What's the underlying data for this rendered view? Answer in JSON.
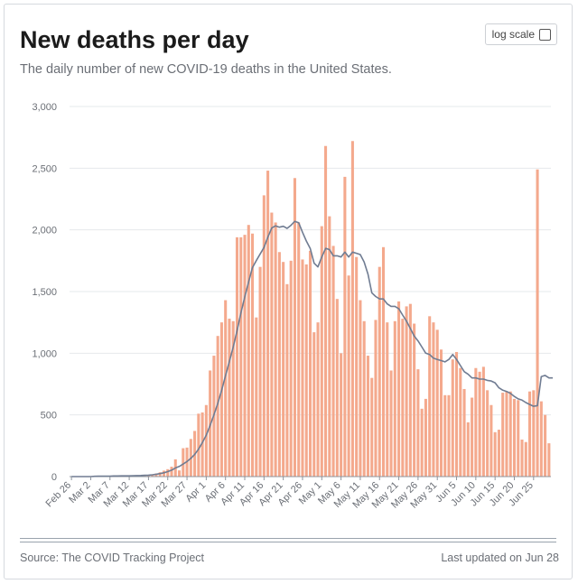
{
  "header": {
    "title": "New deaths per day",
    "subtitle": "The daily number of new COVID-19 deaths in the United States.",
    "log_scale_label": "log scale"
  },
  "footer": {
    "source": "Source: The COVID Tracking Project",
    "updated": "Last updated on Jun 28"
  },
  "colors": {
    "bar": "#f4a98d",
    "line": "#707c92",
    "grid": "#e6e8eb"
  },
  "chart_data": {
    "type": "bar",
    "title": "New deaths per day",
    "ylim": [
      0,
      3000
    ],
    "yticks": [
      0,
      500,
      1000,
      1500,
      2000,
      2500,
      3000
    ],
    "ytick_labels": [
      "0",
      "500",
      "1,000",
      "1,500",
      "2,000",
      "2,500",
      "3,000"
    ],
    "xtick_labels": [
      "Feb 26",
      "Mar 2",
      "Mar 7",
      "Mar 12",
      "Mar 17",
      "Mar 22",
      "Mar 27",
      "Apr 1",
      "Apr 6",
      "Apr 11",
      "Apr 16",
      "Apr 21",
      "Apr 26",
      "May 1",
      "May 6",
      "May 11",
      "May 16",
      "May 21",
      "May 26",
      "May 31",
      "Jun 5",
      "Jun 10",
      "Jun 15",
      "Jun 20",
      "Jun 25"
    ],
    "x_start": "Feb 26",
    "x_end": "Jun 28",
    "grid": true,
    "series": [
      {
        "type": "bar",
        "values": [
          0,
          0,
          0,
          0,
          0,
          0,
          2,
          3,
          4,
          5,
          5,
          6,
          5,
          6,
          6,
          7,
          8,
          9,
          10,
          12,
          14,
          18,
          25,
          35,
          48,
          60,
          80,
          140,
          50,
          230,
          235,
          305,
          370,
          510,
          520,
          580,
          860,
          980,
          1140,
          1250,
          1430,
          1280,
          1260,
          1940,
          1940,
          1960,
          2040,
          1970,
          1290,
          1700,
          2280,
          2480,
          2140,
          2060,
          1820,
          1740,
          1560,
          1750,
          2420,
          2060,
          1760,
          1720,
          1830,
          1170,
          1250,
          2030,
          2680,
          2110,
          1870,
          1440,
          1000,
          2430,
          1630,
          2720,
          1780,
          1430,
          1260,
          980,
          800,
          1270,
          1700,
          1860,
          1250,
          860,
          1260,
          1420,
          1280,
          1380,
          1400,
          1240,
          870,
          550,
          630,
          1300,
          1250,
          1190,
          1030,
          660,
          660,
          950,
          1010,
          880,
          710,
          440,
          640,
          880,
          850,
          890,
          700,
          580,
          360,
          380,
          680,
          690,
          690,
          630,
          620,
          300,
          280,
          690,
          700,
          2490,
          610,
          500,
          270
        ]
      },
      {
        "type": "line",
        "values": [
          0,
          0,
          0,
          0,
          0,
          0,
          2,
          3,
          4,
          4,
          4,
          5,
          5,
          6,
          6,
          6,
          7,
          8,
          9,
          10,
          12,
          15,
          19,
          24,
          31,
          40,
          52,
          70,
          82,
          102,
          122,
          148,
          180,
          222,
          276,
          336,
          414,
          501,
          595,
          699,
          818,
          934,
          1049,
          1183,
          1325,
          1456,
          1578,
          1694,
          1751,
          1805,
          1857,
          1941,
          2015,
          2033,
          2022,
          2029,
          2012,
          2037,
          2069,
          2058,
          1980,
          1910,
          1850,
          1730,
          1700,
          1780,
          1850,
          1840,
          1790,
          1790,
          1780,
          1820,
          1780,
          1820,
          1810,
          1800,
          1740,
          1640,
          1490,
          1460,
          1440,
          1440,
          1400,
          1380,
          1380,
          1360,
          1310,
          1260,
          1200,
          1140,
          1100,
          1050,
          1000,
          990,
          960,
          950,
          940,
          930,
          950,
          990,
          950,
          900,
          850,
          830,
          800,
          800,
          790,
          790,
          780,
          775,
          760,
          720,
          700,
          690,
          675,
          650,
          630,
          620,
          600,
          585,
          570,
          575,
          810,
          820,
          800,
          800
        ]
      }
    ]
  }
}
